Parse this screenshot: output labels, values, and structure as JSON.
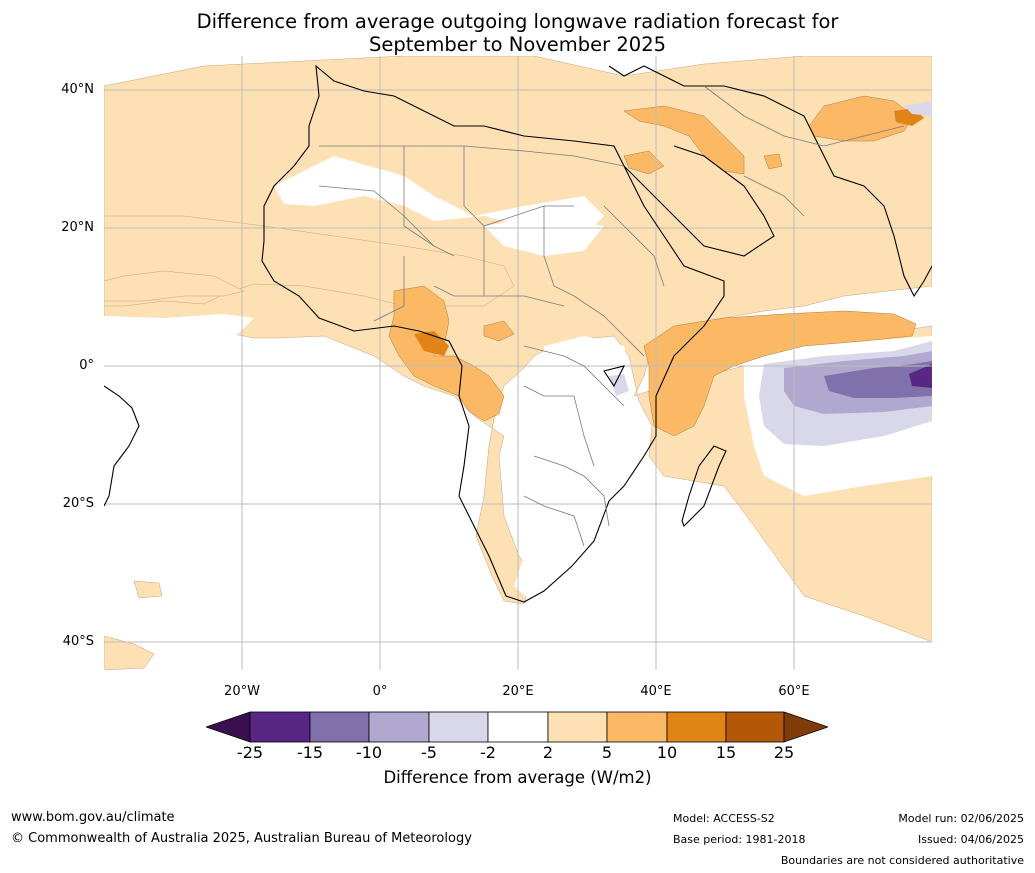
{
  "title_line1": "Difference from average outgoing longwave radiation forecast for",
  "title_line2": "September to November 2025",
  "map": {
    "lat_labels": [
      "40°N",
      "20°N",
      "0°",
      "20°S",
      "40°S"
    ],
    "lon_labels": [
      "20°W",
      "0°",
      "20°E",
      "40°E",
      "60°E"
    ]
  },
  "colorbar": {
    "ticks": [
      "-25",
      "-15",
      "-10",
      "-5",
      "-2",
      "2",
      "5",
      "10",
      "15",
      "25"
    ],
    "colors": [
      "#3b0f4f",
      "#582783",
      "#8070ab",
      "#b1a8d0",
      "#d8d8ea",
      "#ffffff",
      "#fde0b4",
      "#fbb966",
      "#e08415",
      "#b35806",
      "#7f3b08"
    ],
    "label": "Difference from average (W/m2)"
  },
  "footer": {
    "url": "www.bom.gov.au/climate",
    "copyright": "© Commonwealth of Australia 2025, Australian Bureau of Meteorology",
    "model": "Model: ACCESS-S2",
    "base_period": "Base period: 1981-2018",
    "model_run": "Model run: 02/06/2025",
    "issued": "Issued: 04/06/2025",
    "disclaimer": "Boundaries are not considered authoritative"
  }
}
